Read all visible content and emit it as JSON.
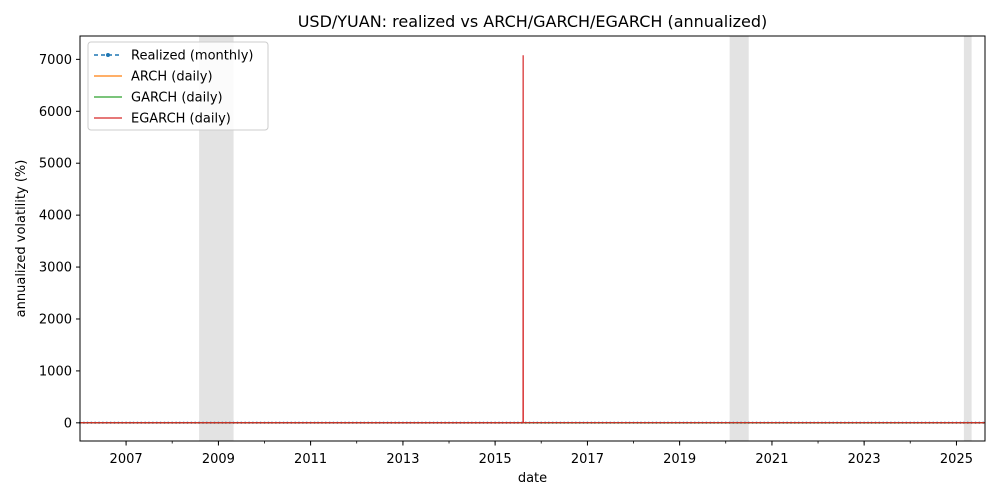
{
  "chart_data": {
    "type": "line",
    "title": "USD/YUAN: realized vs ARCH/GARCH/EGARCH (annualized)",
    "xlabel": "date",
    "ylabel": "annualized volatility (%)",
    "xlim": [
      "2006-01-01",
      "2025-08-15"
    ],
    "ylim": [
      -350,
      7450
    ],
    "x_ticks": [
      {
        "date": "2007-01-01",
        "label": "2007"
      },
      {
        "date": "2009-01-01",
        "label": "2009"
      },
      {
        "date": "2011-01-01",
        "label": "2011"
      },
      {
        "date": "2013-01-01",
        "label": "2013"
      },
      {
        "date": "2015-01-01",
        "label": "2015"
      },
      {
        "date": "2017-01-01",
        "label": "2017"
      },
      {
        "date": "2019-01-01",
        "label": "2019"
      },
      {
        "date": "2021-01-01",
        "label": "2021"
      },
      {
        "date": "2023-01-01",
        "label": "2023"
      },
      {
        "date": "2025-01-01",
        "label": "2025"
      }
    ],
    "y_ticks": [
      0,
      1000,
      2000,
      3000,
      4000,
      5000,
      6000,
      7000
    ],
    "grid": false,
    "legend_position": "top-left",
    "shaded_periods": [
      {
        "start": "2008-08-01",
        "end": "2009-05-01"
      },
      {
        "start": "2020-02-01",
        "end": "2020-07-01"
      },
      {
        "start": "2025-03-01",
        "end": "2025-05-01"
      }
    ],
    "series": [
      {
        "name": "Realized (monthly)",
        "color": "#1f77b4",
        "style": "dashed-markers",
        "x": [
          "2006-01-01",
          "2025-08-01"
        ],
        "y": [
          2,
          2
        ]
      },
      {
        "name": "ARCH (daily)",
        "color": "#ff7f0e",
        "style": "solid",
        "x": [
          "2006-01-01",
          "2025-08-15"
        ],
        "y": [
          2,
          2
        ]
      },
      {
        "name": "GARCH (daily)",
        "color": "#2ca02c",
        "style": "solid",
        "x": [
          "2006-01-01",
          "2025-08-15"
        ],
        "y": [
          2,
          2
        ]
      },
      {
        "name": "EGARCH (daily)",
        "color": "#d62728",
        "style": "solid",
        "x": [
          "2006-01-01",
          "2015-08-10",
          "2015-08-11",
          "2015-08-12",
          "2025-08-15"
        ],
        "y": [
          2,
          2,
          7080,
          3,
          2
        ]
      }
    ]
  }
}
